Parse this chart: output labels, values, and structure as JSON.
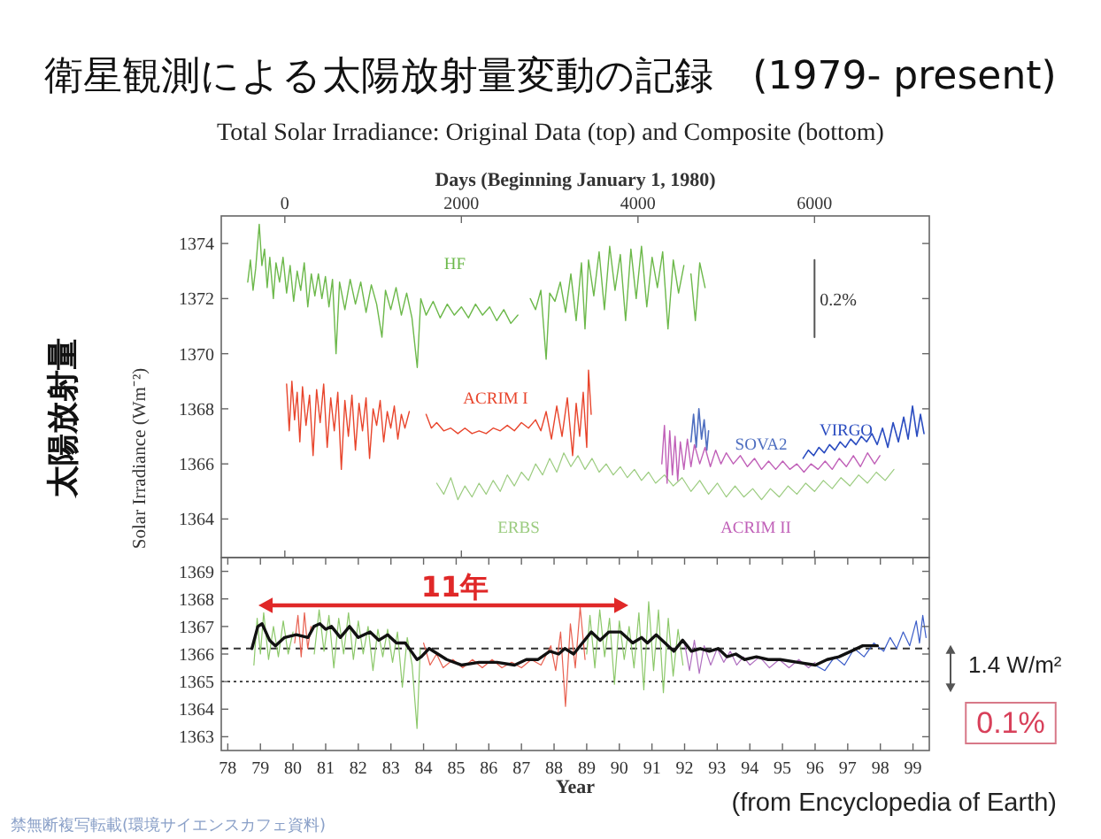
{
  "chart_data": [
    {
      "type": "line",
      "title": "衛星観測による太陽放射量変動の記録　(1979- present)",
      "subtitle": "Total Solar Irradiance: Original Data (top) and Composite (bottom)",
      "xlabel": "Days (Beginning January 1, 1980)",
      "ylabel": "Solar Irradiance (Wm⁻²)",
      "xlim": [
        -720,
        7300
      ],
      "xticks": [
        0,
        2000,
        4000,
        6000
      ],
      "ylim": [
        1362.6,
        1375
      ],
      "yticks": [
        1364,
        1366,
        1368,
        1370,
        1372,
        1374
      ],
      "annotations": [
        "太陽放射量",
        {
          "text": "0.2%",
          "x": 6000,
          "y": 1372
        }
      ],
      "series": [
        {
          "name": "HF",
          "color": "#6cb84a",
          "x": [
            -420,
            -390,
            -360,
            -330,
            -290,
            -260,
            -230,
            -200,
            -170,
            -130,
            -100,
            -60,
            -20,
            20,
            60,
            100,
            140,
            180,
            220,
            260,
            300,
            340,
            380,
            420,
            460,
            500,
            540,
            580,
            620,
            680,
            740,
            800,
            860,
            920,
            980,
            1040,
            1100,
            1140,
            1200,
            1260,
            1320,
            1380,
            1440,
            1500,
            1540,
            1600,
            1680,
            1760,
            1840,
            1920,
            2000,
            2080,
            2160,
            2240,
            2320,
            2400,
            2480,
            2560,
            2640,
            2700,
            2780,
            2840,
            2900,
            2960,
            3000,
            3060,
            3120,
            3180,
            3240,
            3300,
            3360,
            3400,
            3440,
            3500,
            3560,
            3620,
            3680,
            3740,
            3800,
            3860,
            3920,
            3980,
            4040,
            4100,
            4160,
            4220,
            4280,
            4340,
            4400,
            4460,
            4520,
            4560,
            4600,
            4650,
            4700,
            4760
          ],
          "values": [
            1372.6,
            1373.4,
            1372.3,
            1373.1,
            1374.7,
            1373.2,
            1373.8,
            1372.4,
            1373.5,
            1372.0,
            1373.3,
            1372.6,
            1373.5,
            1372.2,
            1373.2,
            1371.9,
            1373.0,
            1372.3,
            1373.3,
            1371.7,
            1372.9,
            1372.1,
            1372.9,
            1372.0,
            1372.8,
            1371.7,
            1372.7,
            1370.0,
            1372.6,
            1371.6,
            1372.7,
            1371.8,
            1372.6,
            1371.5,
            1372.5,
            1371.8,
            1370.6,
            1372.3,
            1371.6,
            1372.4,
            1371.4,
            1372.2,
            1371.3,
            1369.5,
            1372.0,
            1371.4,
            1371.9,
            1371.3,
            1371.8,
            1371.4,
            1371.7,
            1371.3,
            1371.8,
            1371.4,
            1371.7,
            1371.2,
            1371.6,
            1371.1,
            1371.4,
            null,
            1372.0,
            1371.6,
            1372.3,
            1369.8,
            1372.2,
            1371.9,
            1372.6,
            1371.5,
            1372.9,
            1371.2,
            1373.3,
            1370.9,
            1373.4,
            1372.1,
            1373.7,
            1371.6,
            1373.9,
            1372.3,
            1373.6,
            1371.2,
            1373.8,
            1372.0,
            1373.9,
            1371.7,
            1373.5,
            1372.4,
            1373.7,
            1370.9,
            1373.4,
            1372.2,
            1373.2,
            null,
            1372.9,
            1371.2,
            1373.3,
            1372.4
          ]
        },
        {
          "name": "ACRIM I",
          "color": "#e8452c",
          "x": [
            20,
            50,
            80,
            110,
            140,
            170,
            200,
            240,
            280,
            320,
            360,
            400,
            440,
            480,
            520,
            560,
            600,
            640,
            680,
            720,
            760,
            800,
            840,
            880,
            920,
            960,
            1000,
            1040,
            1080,
            1120,
            1160,
            1200,
            1240,
            1280,
            1320,
            1360,
            1410,
            1450,
            1600,
            1660,
            1720,
            1800,
            1880,
            1960,
            2040,
            2120,
            2200,
            2280,
            2360,
            2440,
            2520,
            2600,
            2680,
            2760,
            2840,
            2900,
            2960,
            3020,
            3080,
            3140,
            3200,
            3260,
            3300,
            3340,
            3380,
            3420,
            3440,
            3470
          ],
          "values": [
            1368.9,
            1367.2,
            1369.0,
            1367.6,
            1368.6,
            1366.8,
            1368.8,
            1367.4,
            1368.5,
            1366.3,
            1368.7,
            1367.5,
            1368.9,
            1366.6,
            1368.4,
            1367.2,
            1368.6,
            1365.8,
            1368.3,
            1367.0,
            1368.5,
            1366.5,
            1368.2,
            1367.2,
            1368.4,
            1366.2,
            1368.0,
            1367.4,
            1368.3,
            1366.8,
            1367.9,
            1367.3,
            1368.1,
            1366.9,
            1367.8,
            1367.3,
            1367.9,
            null,
            1367.8,
            1367.3,
            1367.5,
            1367.2,
            1367.3,
            1367.1,
            1367.3,
            1367.1,
            1367.2,
            1367.1,
            1367.3,
            1367.2,
            1367.4,
            1367.2,
            1367.5,
            1367.3,
            1367.6,
            1367.2,
            1367.9,
            1366.9,
            1368.1,
            1367.0,
            1368.4,
            1366.3,
            1368.2,
            1367.0,
            1368.6,
            1366.6,
            1369.4,
            1367.8
          ]
        },
        {
          "name": "ERBS",
          "color": "#9ccc80",
          "x": [
            1720,
            1800,
            1880,
            1960,
            2040,
            2120,
            2200,
            2280,
            2360,
            2440,
            2520,
            2600,
            2680,
            2760,
            2840,
            2920,
            3000,
            3080,
            3160,
            3240,
            3320,
            3400,
            3480,
            3560,
            3640,
            3720,
            3800,
            3880,
            3960,
            4040,
            4120,
            4200,
            4300,
            4400,
            4500,
            4600,
            4700,
            4800,
            4900,
            5000,
            5100,
            5200,
            5300,
            5400,
            5500,
            5600,
            5700,
            5800,
            5900,
            6000,
            6100,
            6200,
            6300,
            6400,
            6500,
            6600,
            6700,
            6800,
            6900
          ],
          "values": [
            1365.3,
            1364.9,
            1365.5,
            1364.7,
            1365.2,
            1364.8,
            1365.3,
            1364.9,
            1365.4,
            1365.0,
            1365.6,
            1365.2,
            1365.7,
            1365.4,
            1366.0,
            1365.6,
            1366.2,
            1365.7,
            1366.4,
            1365.9,
            1366.3,
            1365.8,
            1366.2,
            1365.7,
            1366.0,
            1365.6,
            1365.9,
            1365.5,
            1365.8,
            1365.4,
            1365.7,
            1365.3,
            1365.6,
            1365.2,
            1365.5,
            1365.0,
            1365.4,
            1364.9,
            1365.3,
            1364.8,
            1365.2,
            1364.8,
            1365.1,
            1364.7,
            1365.1,
            1364.8,
            1365.2,
            1364.9,
            1365.3,
            1365.0,
            1365.4,
            1365.1,
            1365.5,
            1365.2,
            1365.6,
            1365.3,
            1365.7,
            1365.4,
            1365.8
          ]
        },
        {
          "name": "SOVA2",
          "color": "#4f6fc0",
          "x": [
            4600,
            4630,
            4660,
            4690,
            4720,
            4750,
            4780,
            4800
          ],
          "values": [
            1366.8,
            1367.8,
            1366.6,
            1368.0,
            1366.9,
            1367.6,
            1366.5,
            1367.2
          ]
        },
        {
          "name": "ACRIM II",
          "color": "#c060b8",
          "x": [
            4270,
            4300,
            4330,
            4360,
            4390,
            4420,
            4450,
            4480,
            4520,
            4560,
            4600,
            4640,
            4700,
            4760,
            4820,
            4880,
            4940,
            5000,
            5080,
            5160,
            5240,
            5320,
            5400,
            5480,
            5560,
            5640,
            5720,
            5800,
            5880,
            5960,
            6040,
            6120,
            6200,
            6280,
            6360,
            6440,
            6520,
            6600,
            6680,
            6740
          ],
          "values": [
            1366.0,
            1367.4,
            1365.3,
            1367.2,
            1365.6,
            1367.0,
            1365.4,
            1366.8,
            1365.8,
            1366.9,
            1365.9,
            1366.7,
            1366.0,
            1366.6,
            1365.9,
            1366.5,
            1366.0,
            1366.4,
            1366.0,
            1366.3,
            1365.9,
            1366.2,
            1365.8,
            1366.1,
            1365.8,
            1366.1,
            1365.8,
            1366.0,
            1365.7,
            1366.0,
            1365.8,
            1366.1,
            1365.8,
            1366.2,
            1365.9,
            1366.3,
            1365.9,
            1366.4,
            1366.0,
            1366.3
          ]
        },
        {
          "name": "VIRGO",
          "color": "#2a4cc0",
          "x": [
            5870,
            5930,
            5990,
            6050,
            6110,
            6170,
            6230,
            6290,
            6350,
            6410,
            6470,
            6530,
            6590,
            6650,
            6710,
            6770,
            6830,
            6890,
            6950,
            7010,
            7060,
            7110,
            7160,
            7200,
            7240
          ],
          "values": [
            1366.2,
            1366.5,
            1366.3,
            1366.6,
            1366.4,
            1366.7,
            1366.5,
            1366.8,
            1366.6,
            1366.9,
            1366.7,
            1367.0,
            1366.8,
            1367.1,
            1366.7,
            1367.3,
            1366.6,
            1367.5,
            1366.8,
            1367.7,
            1366.9,
            1368.1,
            1367.0,
            1367.8,
            1367.1
          ]
        },
        {
          "color": "#555555",
          "x": [
            6000,
            6000
          ],
          "values": [
            1370.6,
            1373.4
          ]
        }
      ]
    },
    {
      "type": "line",
      "xlabel": "Year",
      "xlim": [
        1977.8,
        1999.5
      ],
      "xticks": [
        {
          "value": 1978,
          "label": "78"
        },
        {
          "value": 1979,
          "label": "79"
        },
        {
          "value": 1980,
          "label": "80"
        },
        {
          "value": 1981,
          "label": "81"
        },
        {
          "value": 1982,
          "label": "82"
        },
        {
          "value": 1983,
          "label": "83"
        },
        {
          "value": 1984,
          "label": "84"
        },
        {
          "value": 1985,
          "label": "85"
        },
        {
          "value": 1986,
          "label": "86"
        },
        {
          "value": 1987,
          "label": "87"
        },
        {
          "value": 1988,
          "label": "88"
        },
        {
          "value": 1989,
          "label": "89"
        },
        {
          "value": 1990,
          "label": "90"
        },
        {
          "value": 1991,
          "label": "91"
        },
        {
          "value": 1992,
          "label": "92"
        },
        {
          "value": 1993,
          "label": "93"
        },
        {
          "value": 1994,
          "label": "94"
        },
        {
          "value": 1995,
          "label": "95"
        },
        {
          "value": 1996,
          "label": "96"
        },
        {
          "value": 1997,
          "label": "97"
        },
        {
          "value": 1998,
          "label": "98"
        },
        {
          "value": 1999,
          "label": "99"
        }
      ],
      "ylim": [
        1362.5,
        1369.5
      ],
      "yticks": [
        1363,
        1364,
        1365,
        1366,
        1367,
        1368,
        1369
      ],
      "ref_lines": [
        {
          "axis": "y",
          "value": 1366.2,
          "line_style": "dashed",
          "color": "#333333"
        },
        {
          "axis": "y",
          "value": 1365,
          "line_style": "dotted",
          "color": "#333333"
        }
      ],
      "annotations": [
        "11年",
        "1.4 W/m²",
        "0.1%",
        "(from Encyclopedia of Earth)",
        "禁無断複写転載(環境サイエンスカフェ資料)"
      ],
      "series": [
        {
          "color": "#8cc86a",
          "x": [
            1978.8,
            1978.9,
            1979.0,
            1979.1,
            1979.25,
            1979.4,
            1979.55,
            1979.7,
            1979.85,
            1980.0,
            1980.3,
            1980.65,
            1980.8,
            1980.95,
            1981.1,
            1981.25,
            1981.4,
            1981.55,
            1981.7,
            1981.85,
            1982.0,
            1982.15,
            1982.3,
            1982.45,
            1982.6,
            1982.75,
            1982.9,
            1983.05,
            1983.2,
            1983.35,
            1983.5,
            1983.65,
            1983.8,
            1983.9,
            1986.0,
            1989.0,
            1989.1,
            1989.25,
            1989.4,
            1989.55,
            1989.7,
            1989.85,
            1990.0,
            1990.15,
            1990.3,
            1990.45,
            1990.6,
            1990.75,
            1990.9,
            1991.05,
            1991.2,
            1991.35,
            1991.5,
            1991.65,
            1991.8,
            1991.95
          ],
          "values": [
            1365.6,
            1367.3,
            1366.0,
            1367.5,
            1365.8,
            1367.0,
            1365.9,
            1367.2,
            1366.0,
            1366.8,
            null,
            1366.0,
            1367.6,
            1366.1,
            1367.4,
            1365.5,
            1367.3,
            1366.0,
            1367.5,
            1365.8,
            1367.2,
            1366.0,
            1367.0,
            1365.4,
            1366.9,
            1365.9,
            1366.9,
            1365.7,
            1366.8,
            1364.8,
            1366.6,
            1365.6,
            1363.3,
            1366.2,
            null,
            1366.0,
            1367.4,
            1365.5,
            1367.6,
            1365.9,
            1367.3,
            1364.9,
            1367.2,
            1365.8,
            1367.0,
            1365.5,
            1367.5,
            1364.7,
            1367.9,
            1365.4,
            1367.6,
            1364.6,
            1367.3,
            1365.2,
            1366.9,
            1365.6
          ]
        },
        {
          "color": "#e86050",
          "x": [
            1980.05,
            1980.15,
            1980.25,
            1980.35,
            1980.45,
            1980.55,
            1982.0,
            1984.0,
            1984.2,
            1984.4,
            1984.6,
            1984.9,
            1985.2,
            1985.5,
            1985.8,
            1986.1,
            1986.4,
            1986.7,
            1987.0,
            1987.3,
            1987.6,
            1987.9,
            1988.05,
            1988.2,
            1988.35,
            1988.5,
            1988.65,
            1988.8,
            1988.95
          ],
          "values": [
            1366.4,
            1367.4,
            1365.9,
            1367.5,
            1366.2,
            1367.0,
            null,
            1366.4,
            1365.6,
            1366.0,
            1365.5,
            1365.8,
            1365.5,
            1365.8,
            1365.5,
            1365.8,
            1365.5,
            1365.7,
            1365.5,
            1365.8,
            1365.6,
            1366.3,
            1365.4,
            1366.8,
            1364.1,
            1367.1,
            1365.5,
            1367.7,
            1365.8
          ]
        },
        {
          "color": "#b070c0",
          "x": [
            1992.0,
            1992.15,
            1992.3,
            1992.45,
            1992.6,
            1992.8,
            1993.0,
            1993.2,
            1993.4,
            1993.6,
            1993.8,
            1994.0,
            1994.3,
            1994.6,
            1994.9,
            1995.2,
            1995.5,
            1995.8,
            1996.0
          ],
          "values": [
            1366.4,
            1365.4,
            1366.5,
            1365.3,
            1366.3,
            1365.6,
            1366.2,
            1365.7,
            1366.1,
            1365.6,
            1365.9,
            1365.6,
            1365.9,
            1365.5,
            1365.8,
            1365.5,
            1365.8,
            1365.5,
            1365.7
          ]
        },
        {
          "color": "#3a5cc8",
          "x": [
            1996.0,
            1996.3,
            1996.6,
            1996.9,
            1997.2,
            1997.5,
            1997.8,
            1998.1,
            1998.3,
            1998.5,
            1998.7,
            1998.9,
            1999.1,
            1999.2,
            1999.3,
            1999.4
          ],
          "values": [
            1365.6,
            1365.4,
            1365.9,
            1365.6,
            1366.2,
            1365.9,
            1366.4,
            1366.1,
            1366.6,
            1366.2,
            1366.8,
            1366.3,
            1367.2,
            1366.4,
            1367.4,
            1366.6
          ]
        },
        {
          "color": "#111111",
          "x": [
            1978.74,
            1978.92,
            1979.05,
            1979.28,
            1979.46,
            1979.74,
            1980.1,
            1980.46,
            1980.64,
            1980.82,
            1981.0,
            1981.18,
            1981.45,
            1981.73,
            1982.0,
            1982.36,
            1982.63,
            1982.9,
            1983.17,
            1983.44,
            1983.62,
            1983.8,
            1983.93,
            1984.17,
            1984.44,
            1984.71,
            1985.16,
            1985.7,
            1986.25,
            1986.79,
            1987.15,
            1987.51,
            1987.87,
            1988.14,
            1988.33,
            1988.6,
            1988.87,
            1989.14,
            1989.41,
            1989.68,
            1990.04,
            1990.41,
            1990.68,
            1990.86,
            1991.13,
            1991.4,
            1991.67,
            1991.94,
            1992.21,
            1992.48,
            1992.76,
            1993.03,
            1993.3,
            1993.57,
            1993.84,
            1994.2,
            1994.56,
            1994.93,
            1995.47,
            1996.01,
            1996.37,
            1996.73,
            1997.1,
            1997.46,
            1997.82,
            1997.91
          ],
          "values": [
            1366.2,
            1367.0,
            1367.1,
            1366.5,
            1366.3,
            1366.6,
            1366.7,
            1366.6,
            1367.0,
            1367.1,
            1366.9,
            1367.0,
            1366.6,
            1367.0,
            1366.6,
            1366.8,
            1366.5,
            1366.7,
            1366.4,
            1366.4,
            1366.1,
            1365.8,
            1365.9,
            1366.2,
            1366.0,
            1365.8,
            1365.6,
            1365.7,
            1365.7,
            1365.6,
            1365.8,
            1365.8,
            1366.1,
            1366.0,
            1366.2,
            1366.0,
            1366.4,
            1366.8,
            1366.5,
            1366.8,
            1366.8,
            1366.4,
            1366.6,
            1366.4,
            1366.7,
            1366.4,
            1366.1,
            1366.5,
            1366.1,
            1366.2,
            1366.1,
            1366.2,
            1365.9,
            1366.0,
            1365.8,
            1365.9,
            1365.8,
            1365.8,
            1365.7,
            1365.6,
            1365.8,
            1365.9,
            1366.1,
            1366.3,
            1366.3,
            1366.3
          ]
        }
      ]
    }
  ]
}
